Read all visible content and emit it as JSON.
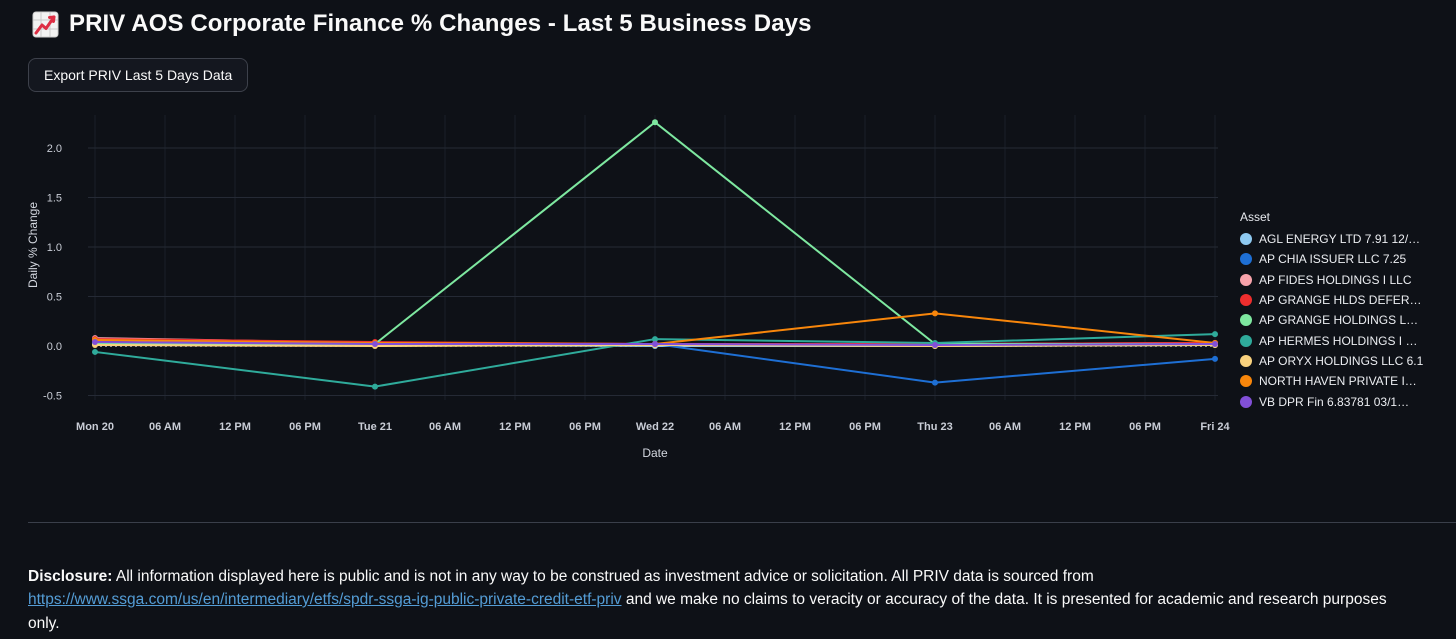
{
  "page": {
    "title": "PRIV AOS Corporate Finance % Changes - Last 5 Business Days",
    "title_icon": "chart-increasing-emoji",
    "background": "#0e1117"
  },
  "toolbar": {
    "export_button_label": "Export PRIV Last 5 Days Data"
  },
  "chart_data": {
    "type": "line",
    "title": "",
    "xlabel": "Date",
    "ylabel": "Daily % Change",
    "ylim": [
      -0.75,
      2.45
    ],
    "yticks": [
      2.0,
      1.5,
      1.0,
      0.5,
      0.0,
      -0.5
    ],
    "x_tick_labels": [
      "Mon 20",
      "06 AM",
      "12 PM",
      "06 PM",
      "Tue 21",
      "06 AM",
      "12 PM",
      "06 PM",
      "Wed 22",
      "06 AM",
      "12 PM",
      "06 PM",
      "Thu 23",
      "06 AM",
      "12 PM",
      "06 PM",
      "Fri 24"
    ],
    "categories": [
      "Mon 20",
      "Tue 21",
      "Wed 22",
      "Thu 23",
      "Fri 24"
    ],
    "grid": true,
    "zeroline_style": "dashed",
    "legend_title": "Asset",
    "legend_position": "right",
    "series": [
      {
        "name": "AGL ENERGY LTD 7.91 12/…",
        "color": "#8ec9f0",
        "values": [
          0.02,
          0.01,
          0.0,
          0.0,
          0.01
        ]
      },
      {
        "name": "AP CHIA ISSUER LLC 7.25",
        "color": "#1e6fd4",
        "values": [
          0.03,
          0.01,
          0.02,
          -0.37,
          -0.13
        ]
      },
      {
        "name": "AP FIDES HOLDINGS I LLC",
        "color": "#f8a3ab",
        "values": [
          0.08,
          0.03,
          0.02,
          0.02,
          0.03
        ]
      },
      {
        "name": "AP GRANGE HLDS DEFER…",
        "color": "#ee2e2e",
        "values": [
          0.07,
          0.04,
          0.02,
          0.02,
          0.03
        ]
      },
      {
        "name": "AP GRANGE HOLDINGS L…",
        "color": "#7ee8a0",
        "values": [
          0.02,
          0.02,
          2.26,
          0.02,
          0.02
        ]
      },
      {
        "name": "AP HERMES HOLDINGS I …",
        "color": "#2fab9b",
        "values": [
          -0.06,
          -0.41,
          0.07,
          0.03,
          0.12
        ]
      },
      {
        "name": "AP ORYX HOLDINGS LLC 6.1",
        "color": "#fad27e",
        "values": [
          0.01,
          0.0,
          0.01,
          0.0,
          0.01
        ]
      },
      {
        "name": "NORTH HAVEN PRIVATE I…",
        "color": "#f8860b",
        "values": [
          0.06,
          0.03,
          0.02,
          0.33,
          0.03
        ]
      },
      {
        "name": "VB DPR Fin 6.83781 03/1…",
        "color": "#8250d8",
        "values": [
          0.04,
          0.02,
          0.02,
          0.01,
          0.02
        ]
      }
    ],
    "colors": {
      "grid": "#252a35",
      "vgrid": "#1a1f29",
      "zeroline": "#c0c4cc",
      "tick_text": "#c9cdd6",
      "axis_title_text": "#d4d8e0"
    }
  },
  "disclosure": {
    "bold_label": "Disclosure:",
    "text_before_link": " All information displayed here is public and is not in any way to be construed as investment advice or solicitation. All PRIV data is sourced from ",
    "link_text": "https://www.ssga.com/us/en/intermediary/etfs/spdr-ssga-ig-public-private-credit-etf-priv",
    "text_after_link": " and we make no claims to veracity or accuracy of the data. It is presented for academic and research purposes only."
  }
}
